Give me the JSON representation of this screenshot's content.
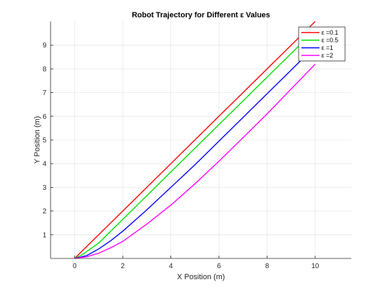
{
  "chart_data": {
    "type": "line",
    "title": "Robot Trajectory for Different ε Values",
    "xlabel": "X Position (m)",
    "ylabel": "Y Position (m)",
    "xlim": [
      -1,
      11.5
    ],
    "ylim": [
      0,
      10
    ],
    "xticks": [
      0,
      2,
      4,
      6,
      8,
      10
    ],
    "yticks": [
      1,
      2,
      3,
      4,
      5,
      6,
      7,
      8,
      9
    ],
    "grid": true,
    "legend_position": "top-right",
    "series": [
      {
        "name": "ε =0.1",
        "color": "#ff0000",
        "x": [
          0.0,
          1.0,
          2.0,
          3.0,
          4.0,
          5.0,
          6.0,
          7.0,
          8.0,
          9.0,
          10.0
        ],
        "y": [
          0.0,
          1.0,
          2.0,
          3.0,
          4.0,
          5.0,
          6.0,
          7.0,
          8.0,
          9.0,
          10.0
        ]
      },
      {
        "name": "ε =0.5",
        "color": "#00e000",
        "x": [
          0.0,
          0.3,
          1.0,
          2.0,
          3.0,
          4.0,
          5.0,
          6.0,
          7.0,
          8.0,
          9.0,
          9.8
        ],
        "y": [
          0.0,
          0.15,
          0.65,
          1.65,
          2.65,
          3.65,
          4.65,
          5.65,
          6.65,
          7.65,
          8.65,
          9.45
        ]
      },
      {
        "name": "ε =1",
        "color": "#0000ff",
        "x": [
          0.0,
          0.5,
          1.0,
          1.5,
          2.0,
          3.0,
          4.0,
          5.0,
          6.0,
          7.0,
          8.0,
          9.0,
          9.8
        ],
        "y": [
          0.0,
          0.12,
          0.4,
          0.75,
          1.15,
          2.05,
          3.0,
          3.95,
          4.95,
          5.95,
          6.95,
          7.95,
          8.75
        ]
      },
      {
        "name": "ε =2",
        "color": "#ff00ff",
        "x": [
          0.0,
          0.5,
          1.0,
          1.5,
          2.0,
          3.0,
          4.0,
          5.0,
          6.0,
          7.0,
          8.0,
          9.0,
          10.0
        ],
        "y": [
          0.0,
          0.07,
          0.22,
          0.45,
          0.72,
          1.45,
          2.25,
          3.15,
          4.1,
          5.1,
          6.1,
          7.15,
          8.2
        ]
      }
    ]
  }
}
